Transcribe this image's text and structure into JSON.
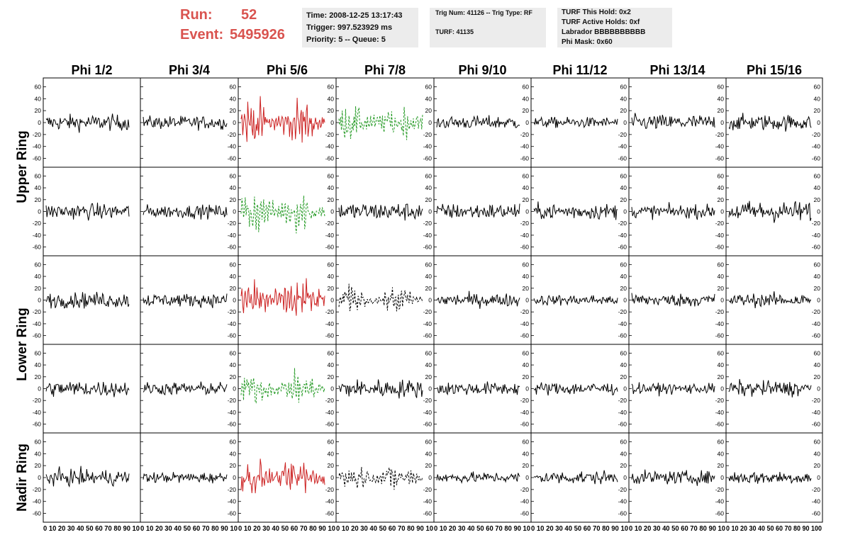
{
  "header": {
    "run_label": "Run:",
    "run_value": "52",
    "event_label": "Event:",
    "event_value": "5495926"
  },
  "info_box_1": {
    "time": "Time: 2008-12-25 13:17:43",
    "trigger": "Trigger: 997.523929 ms",
    "priority": "Priority: 5 -- Queue: 5"
  },
  "info_box_2": {
    "trig_num": "Trig Num: 41126 -- Trig Type: RF",
    "turf": "TURF: 41135"
  },
  "info_box_3": {
    "this_hold": "TURF This Hold: 0x2",
    "active_holds": "TURF Active Holds: 0xf",
    "labrador": "Labrador BBBBBBBBBB",
    "phi_mask": "Phi Mask: 0x60"
  },
  "colors": {
    "normal": "#000000",
    "triggered_red": "#cc2222",
    "masked_green": "#229922",
    "header_red": "#d9534f",
    "info_bg": "#ececec"
  },
  "chart_data": {
    "type": "line",
    "columns": [
      "Phi 1/2",
      "Phi 3/4",
      "Phi 5/6",
      "Phi 7/8",
      "Phi 9/10",
      "Phi 11/12",
      "Phi 13/14",
      "Phi 15/16"
    ],
    "row_labels": [
      "Upper Ring",
      "Lower Ring",
      "Nadir Ring"
    ],
    "rows_per_ring": [
      2,
      2,
      1
    ],
    "xlim": [
      0,
      100
    ],
    "ylim": [
      -70,
      70
    ],
    "yticks": [
      -60,
      -40,
      -20,
      0,
      20,
      40,
      60
    ],
    "xticks": [
      0,
      10,
      20,
      30,
      40,
      50,
      60,
      70,
      80,
      90,
      100
    ],
    "bottom_axis_labels": [
      "0 10 20 30 40 50 60 70 80 90 10",
      "0 10 20 30 40 50 60 70 80 90 10",
      "0 10 20 30 40 50 60 70 80 90 10",
      "0 10 20 30 40 50 60 70 80 90 10",
      "0 10 20 30 40 50 60 70 80 90 10",
      "0 10 20 30 40 50 60 70 80 90 10",
      "0 10 20 30 40 50 60 70 80 90 10",
      "0 10 20 30 40 50 60 70 80 90 100"
    ],
    "panel_styles": [
      [
        "black",
        "black",
        "red",
        "green-dashed",
        "black",
        "black",
        "black",
        "black"
      ],
      [
        "black",
        "black",
        "green-dashed",
        "black",
        "black",
        "black",
        "black",
        "black"
      ],
      [
        "black",
        "black",
        "red",
        "black-dashed",
        "black",
        "black",
        "black",
        "black"
      ],
      [
        "black",
        "black",
        "green-dashed",
        "black",
        "black",
        "black",
        "black",
        "black"
      ],
      [
        "black",
        "black",
        "red",
        "black-dashed",
        "black",
        "black",
        "black",
        "black"
      ]
    ],
    "panel_amplitudes": [
      [
        12,
        10,
        28,
        22,
        10,
        8,
        12,
        12
      ],
      [
        12,
        10,
        26,
        14,
        12,
        12,
        10,
        16
      ],
      [
        12,
        10,
        30,
        18,
        10,
        8,
        10,
        10
      ],
      [
        12,
        10,
        20,
        14,
        10,
        10,
        8,
        12
      ],
      [
        12,
        8,
        24,
        18,
        8,
        10,
        10,
        10
      ]
    ],
    "samples": 100
  }
}
